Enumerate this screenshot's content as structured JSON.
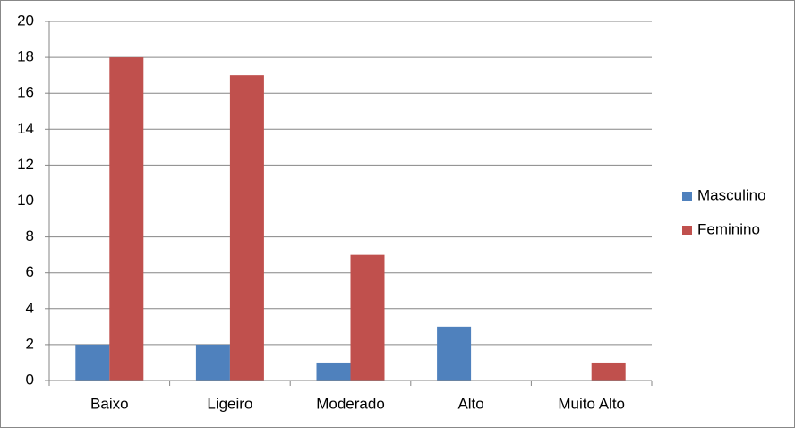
{
  "chart_data": {
    "type": "bar",
    "categories": [
      "Baixo",
      "Ligeiro",
      "Moderado",
      "Alto",
      "Muito Alto"
    ],
    "series": [
      {
        "name": "Masculino",
        "color": "#4f81bd",
        "values": [
          2,
          2,
          1,
          3,
          0
        ]
      },
      {
        "name": "Feminino",
        "color": "#c0504d",
        "values": [
          18,
          17,
          7,
          0,
          1
        ]
      }
    ],
    "ylim": [
      0,
      20
    ],
    "yticks": [
      0,
      2,
      4,
      6,
      8,
      10,
      12,
      14,
      16,
      18,
      20
    ],
    "grid": true,
    "legend": "right"
  }
}
